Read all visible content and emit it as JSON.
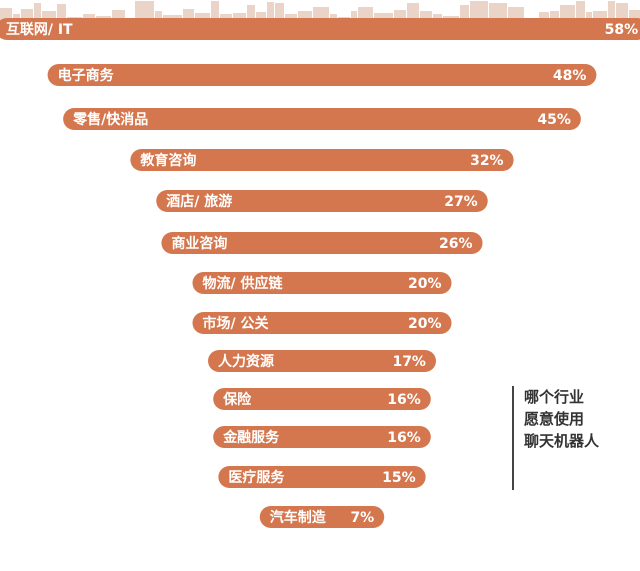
{
  "chart_data": {
    "type": "bar",
    "orientation": "horizontal-funnel",
    "categories": [
      "互联网/ IT",
      "电子商务",
      "零售/快消品",
      "教育咨询",
      "酒店/ 旅游",
      "商业咨询",
      "物流/ 供应链",
      "市场/ 公关",
      "人力资源",
      "保险",
      "金融服务",
      "医疗服务",
      "汽车制造"
    ],
    "values": [
      58,
      48,
      45,
      32,
      27,
      26,
      20,
      20,
      17,
      16,
      16,
      15,
      7
    ],
    "value_labels": [
      "58%",
      "48%",
      "45%",
      "32%",
      "27%",
      "26%",
      "20%",
      "20%",
      "17%",
      "16%",
      "16%",
      "15%",
      "7%"
    ],
    "unit": "%",
    "title": "",
    "xlabel": "",
    "ylabel": "",
    "grid": false,
    "legend": "none"
  },
  "annotation": {
    "lines": [
      "哪个行业",
      "愿意使用",
      "聊天机器人"
    ]
  },
  "colors": {
    "bar": "#d5774e",
    "bar_text": "#ffffff",
    "background": "#ffffff",
    "skyline": "#ead4c8",
    "annotation_text": "#333333",
    "annotation_rule": "#444444"
  }
}
